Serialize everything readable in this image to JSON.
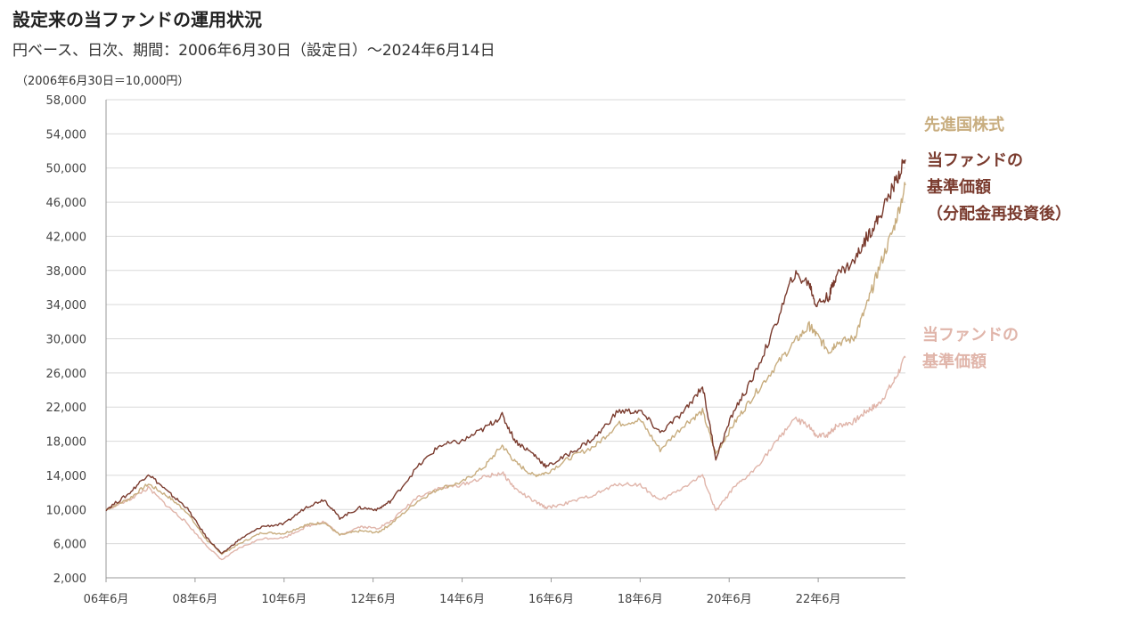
{
  "title": "設定来の当ファンドの運用状況",
  "subtitle": "円ベース、日次、期間：2006年6月30日（設定日）～2024年6月14日",
  "unit_note": "（2006年6月30日＝10,000円）",
  "chart_data": {
    "type": "line",
    "ylim": [
      2000,
      58000
    ],
    "yticks": [
      2000,
      6000,
      10000,
      14000,
      18000,
      22000,
      26000,
      30000,
      34000,
      38000,
      42000,
      46000,
      50000,
      54000,
      58000
    ],
    "ytick_labels": [
      "2,000",
      "6,000",
      "10,000",
      "14,000",
      "18,000",
      "22,000",
      "26,000",
      "30,000",
      "34,000",
      "38,000",
      "42,000",
      "46,000",
      "50,000",
      "54,000",
      "58,000"
    ],
    "xlim": [
      2006.5,
      2024.46
    ],
    "xticks": [
      2006.5,
      2008.5,
      2010.5,
      2012.5,
      2014.5,
      2016.5,
      2018.5,
      2020.5,
      2022.5
    ],
    "xtick_labels": [
      "06年6月",
      "08年6月",
      "10年6月",
      "12年6月",
      "14年6月",
      "16年6月",
      "18年6月",
      "20年6月",
      "22年6月"
    ],
    "grid": true,
    "series": [
      {
        "name": "先進国株式",
        "color": "#c8ad7f",
        "points": [
          [
            2006.5,
            10000
          ],
          [
            2007.0,
            11200
          ],
          [
            2007.45,
            13000
          ],
          [
            2007.9,
            11500
          ],
          [
            2008.3,
            9800
          ],
          [
            2008.75,
            6500
          ],
          [
            2009.1,
            4800
          ],
          [
            2009.5,
            6000
          ],
          [
            2010.0,
            7300
          ],
          [
            2010.5,
            7200
          ],
          [
            2011.0,
            8200
          ],
          [
            2011.4,
            8500
          ],
          [
            2011.75,
            7000
          ],
          [
            2012.2,
            7500
          ],
          [
            2012.6,
            7300
          ],
          [
            2012.9,
            8300
          ],
          [
            2013.5,
            11000
          ],
          [
            2014.0,
            12500
          ],
          [
            2014.5,
            13200
          ],
          [
            2015.0,
            15000
          ],
          [
            2015.4,
            17500
          ],
          [
            2015.7,
            15500
          ],
          [
            2016.1,
            14000
          ],
          [
            2016.4,
            14300
          ],
          [
            2016.9,
            16000
          ],
          [
            2017.5,
            17500
          ],
          [
            2018.0,
            20000
          ],
          [
            2018.5,
            20500
          ],
          [
            2018.95,
            17000
          ],
          [
            2019.5,
            20000
          ],
          [
            2019.9,
            21500
          ],
          [
            2020.2,
            16500
          ],
          [
            2020.6,
            20000
          ],
          [
            2021.0,
            23000
          ],
          [
            2021.5,
            26500
          ],
          [
            2021.95,
            29500
          ],
          [
            2022.3,
            31500
          ],
          [
            2022.45,
            30500
          ],
          [
            2022.75,
            28500
          ],
          [
            2022.9,
            29500
          ],
          [
            2023.3,
            30000
          ],
          [
            2023.6,
            34000
          ],
          [
            2023.85,
            38000
          ],
          [
            2024.2,
            43000
          ],
          [
            2024.46,
            48000
          ]
        ]
      },
      {
        "name": "当ファンドの基準価額（分配金再投資後）",
        "color": "#7a3b2e",
        "points": [
          [
            2006.5,
            10000
          ],
          [
            2007.0,
            11800
          ],
          [
            2007.45,
            14200
          ],
          [
            2007.9,
            12000
          ],
          [
            2008.3,
            10300
          ],
          [
            2008.75,
            6800
          ],
          [
            2009.1,
            4800
          ],
          [
            2009.5,
            6500
          ],
          [
            2010.0,
            8000
          ],
          [
            2010.5,
            8300
          ],
          [
            2011.0,
            10300
          ],
          [
            2011.4,
            11200
          ],
          [
            2011.75,
            9000
          ],
          [
            2012.2,
            10200
          ],
          [
            2012.6,
            10000
          ],
          [
            2012.9,
            11000
          ],
          [
            2013.5,
            15000
          ],
          [
            2014.0,
            17500
          ],
          [
            2014.5,
            18000
          ],
          [
            2015.0,
            19500
          ],
          [
            2015.4,
            21000
          ],
          [
            2015.7,
            18000
          ],
          [
            2016.1,
            16500
          ],
          [
            2016.4,
            15000
          ],
          [
            2016.9,
            16500
          ],
          [
            2017.5,
            18500
          ],
          [
            2018.0,
            21500
          ],
          [
            2018.5,
            21500
          ],
          [
            2018.95,
            19000
          ],
          [
            2019.5,
            21500
          ],
          [
            2019.9,
            24500
          ],
          [
            2020.2,
            16000
          ],
          [
            2020.6,
            21500
          ],
          [
            2021.0,
            25000
          ],
          [
            2021.5,
            31000
          ],
          [
            2021.95,
            37500
          ],
          [
            2022.3,
            36500
          ],
          [
            2022.45,
            34000
          ],
          [
            2022.75,
            35000
          ],
          [
            2022.9,
            37500
          ],
          [
            2023.3,
            39000
          ],
          [
            2023.6,
            42000
          ],
          [
            2023.85,
            44000
          ],
          [
            2024.2,
            48000
          ],
          [
            2024.46,
            51000
          ]
        ]
      },
      {
        "name": "当ファンドの基準価額",
        "color": "#e0b5aa",
        "points": [
          [
            2006.5,
            10000
          ],
          [
            2007.0,
            11100
          ],
          [
            2007.45,
            12500
          ],
          [
            2007.9,
            10300
          ],
          [
            2008.3,
            8500
          ],
          [
            2008.75,
            5800
          ],
          [
            2009.1,
            4100
          ],
          [
            2009.5,
            5500
          ],
          [
            2010.0,
            6600
          ],
          [
            2010.5,
            6700
          ],
          [
            2011.0,
            8000
          ],
          [
            2011.4,
            8600
          ],
          [
            2011.75,
            7000
          ],
          [
            2012.2,
            8000
          ],
          [
            2012.6,
            7800
          ],
          [
            2012.9,
            8600
          ],
          [
            2013.5,
            11500
          ],
          [
            2014.0,
            12500
          ],
          [
            2014.5,
            12900
          ],
          [
            2015.0,
            13800
          ],
          [
            2015.4,
            14300
          ],
          [
            2015.7,
            12400
          ],
          [
            2016.1,
            11000
          ],
          [
            2016.4,
            10200
          ],
          [
            2016.9,
            10800
          ],
          [
            2017.5,
            11800
          ],
          [
            2018.0,
            13000
          ],
          [
            2018.5,
            12900
          ],
          [
            2018.95,
            11000
          ],
          [
            2019.5,
            12700
          ],
          [
            2019.9,
            14000
          ],
          [
            2020.2,
            9800
          ],
          [
            2020.6,
            12500
          ],
          [
            2021.0,
            14300
          ],
          [
            2021.5,
            17500
          ],
          [
            2021.95,
            20600
          ],
          [
            2022.3,
            19800
          ],
          [
            2022.45,
            18500
          ],
          [
            2022.75,
            18800
          ],
          [
            2022.9,
            19800
          ],
          [
            2023.3,
            20300
          ],
          [
            2023.6,
            21600
          ],
          [
            2023.85,
            22300
          ],
          [
            2024.2,
            25000
          ],
          [
            2024.46,
            27800
          ]
        ]
      }
    ]
  },
  "legend": {
    "benchmark": "先進国株式",
    "fund_reinvested_line1": "当ファンドの",
    "fund_reinvested_line2": "基準価額",
    "fund_reinvested_line3": "（分配金再投資後）",
    "fund_nav_line1": "当ファンドの",
    "fund_nav_line2": "基準価額"
  }
}
